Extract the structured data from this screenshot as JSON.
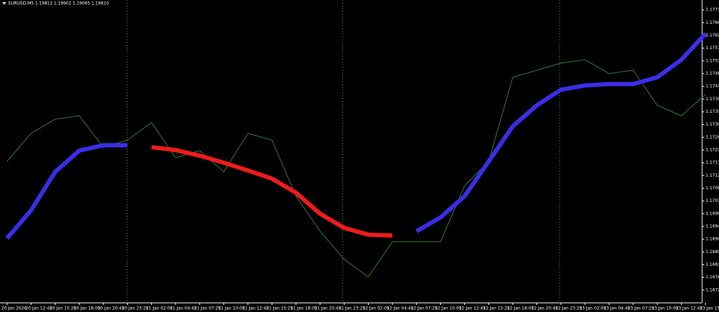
{
  "chart_data": {
    "type": "line",
    "title": "EURUSD,M5  1.19812 1.19902 1.19065 1.19810",
    "categories": [
      "20 Jan 2026",
      "20 Jan 12:45",
      "20 Jan 15:25",
      "20 Jan 18:05",
      "20 Jan 20:45",
      "20 Jan 23:25",
      "21 Jan 02:05",
      "21 Jan 04:45",
      "21 Jan 07:25",
      "21 Jan 10:05",
      "21 Jan 12:45",
      "21 Jan 15:25",
      "21 Jan 18:05",
      "21 Jan 20:45",
      "21 Jan 23:25",
      "22 Jan 02:05",
      "22 Jan 04:45",
      "22 Jan 07:25",
      "22 Jan 10:05",
      "22 Jan 12:45",
      "22 Jan 15:25",
      "22 Jan 18:05",
      "22 Jan 20:45",
      "22 Jan 23:25",
      "23 Jan 02:05",
      "23 Jan 04:45",
      "23 Jan 07:25",
      "23 Jan 10:05",
      "23 Jan 12:45",
      "23 Jan 15:25"
    ],
    "series": [
      {
        "color": "#2e7d32",
        "width": 1,
        "values": [
          1.17175,
          1.17274,
          1.17324,
          1.17336,
          1.17225,
          1.1725,
          1.17312,
          1.17188,
          1.17213,
          1.17138,
          1.17274,
          1.1725,
          1.17052,
          1.16928,
          1.16829,
          1.16767,
          1.16891,
          1.16891,
          1.16891,
          1.17089,
          1.17175,
          1.17472,
          1.17497,
          1.17522,
          1.17534,
          1.17485,
          1.17497,
          1.17373,
          1.17336,
          1.17411
        ]
      },
      {
        "color": "#3a2ee8",
        "width": 6,
        "values": [
          1.16903,
          1.17002,
          1.17138,
          1.17213,
          1.17232,
          1.17232,
          null,
          null,
          null,
          null,
          null,
          null,
          null,
          null,
          null,
          null,
          null,
          1.16928,
          1.16977,
          1.17052,
          1.17175,
          1.17299,
          1.17373,
          1.17428,
          1.17443,
          1.17448,
          1.17448,
          1.17472,
          1.17534,
          1.17626
        ]
      },
      {
        "color": "#ee1c1c",
        "width": 6,
        "values": [
          null,
          null,
          null,
          null,
          null,
          null,
          1.17225,
          1.17215,
          1.17195,
          1.1717,
          1.17143,
          1.17114,
          1.17064,
          1.1699,
          1.1694,
          1.16916,
          1.16913,
          null,
          null,
          null,
          null,
          null,
          null,
          null,
          null,
          null,
          null,
          null,
          null,
          null
        ]
      }
    ],
    "ylim": [
      1.16675,
      1.17745
    ],
    "yticks": [
      {
        "value": 1.1771,
        "label": "1.17710"
      },
      {
        "value": 1.17665,
        "label": "1.17665"
      },
      {
        "value": 1.1762,
        "label": "1.17620"
      },
      {
        "value": 1.17575,
        "label": "1.17575"
      },
      {
        "value": 1.1753,
        "label": "1.17530"
      },
      {
        "value": 1.17485,
        "label": "1.17485"
      },
      {
        "value": 1.1744,
        "label": "1.17440"
      },
      {
        "value": 1.17395,
        "label": "1.17395"
      },
      {
        "value": 1.1735,
        "label": "1.17350"
      },
      {
        "value": 1.17305,
        "label": "1.17305"
      },
      {
        "value": 1.1726,
        "label": "1.17260"
      },
      {
        "value": 1.17215,
        "label": "1.17215"
      },
      {
        "value": 1.1717,
        "label": "1.17170"
      },
      {
        "value": 1.17125,
        "label": "1.17125"
      },
      {
        "value": 1.1708,
        "label": "1.17080"
      },
      {
        "value": 1.17035,
        "label": "1.17035"
      },
      {
        "value": 1.1699,
        "label": "1.16990"
      },
      {
        "value": 1.16945,
        "label": "1.16945"
      },
      {
        "value": 1.169,
        "label": "1.16900"
      },
      {
        "value": 1.16855,
        "label": "1.16855"
      },
      {
        "value": 1.1681,
        "label": "1.16810"
      },
      {
        "value": 1.16765,
        "label": "1.16765"
      },
      {
        "value": 1.1672,
        "label": "1.16720"
      }
    ]
  }
}
